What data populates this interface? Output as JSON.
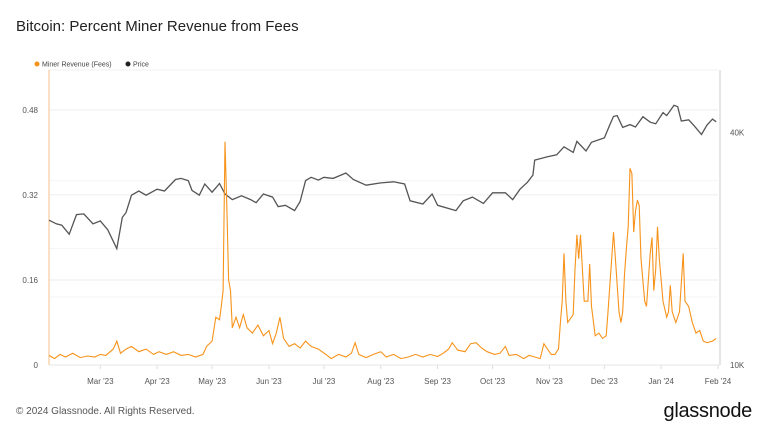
{
  "title": "Bitcoin: Percent Miner Revenue from Fees",
  "footer": "© 2024 Glassnode. All Rights Reserved.",
  "logo": "glassnode",
  "chart_data": {
    "type": "line",
    "title": "Bitcoin: Percent Miner Revenue from Fees",
    "legend": {
      "placement": "top-left",
      "entries": [
        "Miner Revenue (Fees)",
        "Price"
      ]
    },
    "x_range": [
      "2023-02-01",
      "2024-02-01"
    ],
    "x_ticks": [
      {
        "date": "2023-03-01",
        "label": "Mar '23"
      },
      {
        "date": "2023-04-01",
        "label": "Apr '23"
      },
      {
        "date": "2023-05-01",
        "label": "May '23"
      },
      {
        "date": "2023-06-01",
        "label": "Jun '23"
      },
      {
        "date": "2023-07-01",
        "label": "Jul '23"
      },
      {
        "date": "2023-08-01",
        "label": "Aug '23"
      },
      {
        "date": "2023-09-01",
        "label": "Sep '23"
      },
      {
        "date": "2023-10-01",
        "label": "Oct '23"
      },
      {
        "date": "2023-11-01",
        "label": "Nov '23"
      },
      {
        "date": "2023-12-01",
        "label": "Dec '23"
      },
      {
        "date": "2024-01-01",
        "label": "Jan '24"
      },
      {
        "date": "2024-02-01",
        "label": "Feb '24"
      }
    ],
    "y_left": {
      "ylim": [
        0,
        0.555
      ],
      "ticks": [
        {
          "v": 0,
          "label": "0"
        },
        {
          "v": 0.16,
          "label": "0.16"
        },
        {
          "v": 0.32,
          "label": "0.32"
        },
        {
          "v": 0.48,
          "label": "0.48"
        }
      ]
    },
    "y_right": {
      "scale": "log",
      "ylim": [
        10000,
        58000
      ],
      "ticks": [
        {
          "v": 10000,
          "label": "10K"
        },
        {
          "v": 40000,
          "label": "40K"
        }
      ]
    },
    "grid": true,
    "colors": {
      "fees": "#f7931a",
      "price": "#555555",
      "axis_left": "#f9c089"
    },
    "series": [
      {
        "name": "Miner Revenue (Fees)",
        "axis": "left",
        "points": [
          [
            "2023-02-01",
            0.018
          ],
          [
            "2023-02-04",
            0.012
          ],
          [
            "2023-02-07",
            0.02
          ],
          [
            "2023-02-10",
            0.015
          ],
          [
            "2023-02-14",
            0.022
          ],
          [
            "2023-02-18",
            0.014
          ],
          [
            "2023-02-22",
            0.017
          ],
          [
            "2023-02-26",
            0.015
          ],
          [
            "2023-03-01",
            0.02
          ],
          [
            "2023-03-04",
            0.018
          ],
          [
            "2023-03-08",
            0.03
          ],
          [
            "2023-03-10",
            0.045
          ],
          [
            "2023-03-12",
            0.022
          ],
          [
            "2023-03-15",
            0.03
          ],
          [
            "2023-03-18",
            0.035
          ],
          [
            "2023-03-22",
            0.025
          ],
          [
            "2023-03-26",
            0.03
          ],
          [
            "2023-03-30",
            0.02
          ],
          [
            "2023-04-02",
            0.025
          ],
          [
            "2023-04-06",
            0.02
          ],
          [
            "2023-04-10",
            0.025
          ],
          [
            "2023-04-14",
            0.018
          ],
          [
            "2023-04-18",
            0.02
          ],
          [
            "2023-04-22",
            0.015
          ],
          [
            "2023-04-26",
            0.02
          ],
          [
            "2023-04-28",
            0.035
          ],
          [
            "2023-05-01",
            0.045
          ],
          [
            "2023-05-03",
            0.09
          ],
          [
            "2023-05-05",
            0.085
          ],
          [
            "2023-05-06",
            0.11
          ],
          [
            "2023-05-07",
            0.14
          ],
          [
            "2023-05-08",
            0.42
          ],
          [
            "2023-05-09",
            0.3
          ],
          [
            "2023-05-10",
            0.16
          ],
          [
            "2023-05-11",
            0.14
          ],
          [
            "2023-05-12",
            0.07
          ],
          [
            "2023-05-14",
            0.09
          ],
          [
            "2023-05-16",
            0.07
          ],
          [
            "2023-05-18",
            0.095
          ],
          [
            "2023-05-20",
            0.07
          ],
          [
            "2023-05-23",
            0.06
          ],
          [
            "2023-05-26",
            0.075
          ],
          [
            "2023-05-29",
            0.055
          ],
          [
            "2023-06-01",
            0.065
          ],
          [
            "2023-06-03",
            0.04
          ],
          [
            "2023-06-05",
            0.06
          ],
          [
            "2023-06-07",
            0.09
          ],
          [
            "2023-06-09",
            0.05
          ],
          [
            "2023-06-12",
            0.035
          ],
          [
            "2023-06-15",
            0.04
          ],
          [
            "2023-06-18",
            0.032
          ],
          [
            "2023-06-21",
            0.045
          ],
          [
            "2023-06-24",
            0.035
          ],
          [
            "2023-06-28",
            0.03
          ],
          [
            "2023-07-02",
            0.02
          ],
          [
            "2023-07-05",
            0.012
          ],
          [
            "2023-07-09",
            0.02
          ],
          [
            "2023-07-13",
            0.015
          ],
          [
            "2023-07-16",
            0.022
          ],
          [
            "2023-07-18",
            0.042
          ],
          [
            "2023-07-20",
            0.02
          ],
          [
            "2023-07-24",
            0.014
          ],
          [
            "2023-07-28",
            0.02
          ],
          [
            "2023-08-01",
            0.025
          ],
          [
            "2023-08-04",
            0.015
          ],
          [
            "2023-08-08",
            0.02
          ],
          [
            "2023-08-12",
            0.012
          ],
          [
            "2023-08-16",
            0.015
          ],
          [
            "2023-08-20",
            0.02
          ],
          [
            "2023-08-24",
            0.015
          ],
          [
            "2023-08-28",
            0.02
          ],
          [
            "2023-09-01",
            0.016
          ],
          [
            "2023-09-04",
            0.022
          ],
          [
            "2023-09-07",
            0.03
          ],
          [
            "2023-09-09",
            0.042
          ],
          [
            "2023-09-12",
            0.028
          ],
          [
            "2023-09-16",
            0.025
          ],
          [
            "2023-09-19",
            0.04
          ],
          [
            "2023-09-22",
            0.042
          ],
          [
            "2023-09-25",
            0.032
          ],
          [
            "2023-09-28",
            0.025
          ],
          [
            "2023-10-02",
            0.02
          ],
          [
            "2023-10-05",
            0.022
          ],
          [
            "2023-10-08",
            0.035
          ],
          [
            "2023-10-10",
            0.018
          ],
          [
            "2023-10-14",
            0.02
          ],
          [
            "2023-10-18",
            0.012
          ],
          [
            "2023-10-21",
            0.018
          ],
          [
            "2023-10-24",
            0.015
          ],
          [
            "2023-10-27",
            0.012
          ],
          [
            "2023-10-29",
            0.04
          ],
          [
            "2023-10-31",
            0.03
          ],
          [
            "2023-11-02",
            0.02
          ],
          [
            "2023-11-04",
            0.02
          ],
          [
            "2023-11-06",
            0.03
          ],
          [
            "2023-11-07",
            0.08
          ],
          [
            "2023-11-08",
            0.12
          ],
          [
            "2023-11-09",
            0.21
          ],
          [
            "2023-11-10",
            0.12
          ],
          [
            "2023-11-11",
            0.08
          ],
          [
            "2023-11-13",
            0.09
          ],
          [
            "2023-11-14",
            0.095
          ],
          [
            "2023-11-15",
            0.18
          ],
          [
            "2023-11-16",
            0.245
          ],
          [
            "2023-11-17",
            0.2
          ],
          [
            "2023-11-18",
            0.245
          ],
          [
            "2023-11-19",
            0.18
          ],
          [
            "2023-11-20",
            0.12
          ],
          [
            "2023-11-22",
            0.12
          ],
          [
            "2023-11-23",
            0.19
          ],
          [
            "2023-11-24",
            0.11
          ],
          [
            "2023-11-26",
            0.055
          ],
          [
            "2023-11-28",
            0.06
          ],
          [
            "2023-11-30",
            0.05
          ],
          [
            "2023-12-02",
            0.055
          ],
          [
            "2023-12-03",
            0.1
          ],
          [
            "2023-12-05",
            0.2
          ],
          [
            "2023-12-06",
            0.25
          ],
          [
            "2023-12-07",
            0.2
          ],
          [
            "2023-12-09",
            0.1
          ],
          [
            "2023-12-10",
            0.08
          ],
          [
            "2023-12-11",
            0.1
          ],
          [
            "2023-12-12",
            0.17
          ],
          [
            "2023-12-13",
            0.22
          ],
          [
            "2023-12-14",
            0.26
          ],
          [
            "2023-12-15",
            0.37
          ],
          [
            "2023-12-16",
            0.36
          ],
          [
            "2023-12-17",
            0.25
          ],
          [
            "2023-12-18",
            0.29
          ],
          [
            "2023-12-19",
            0.31
          ],
          [
            "2023-12-20",
            0.3
          ],
          [
            "2023-12-21",
            0.2
          ],
          [
            "2023-12-23",
            0.12
          ],
          [
            "2023-12-24",
            0.11
          ],
          [
            "2023-12-26",
            0.21
          ],
          [
            "2023-12-27",
            0.24
          ],
          [
            "2023-12-28",
            0.14
          ],
          [
            "2023-12-29",
            0.18
          ],
          [
            "2023-12-30",
            0.26
          ],
          [
            "2023-12-31",
            0.2
          ],
          [
            "2024-01-02",
            0.12
          ],
          [
            "2024-01-04",
            0.09
          ],
          [
            "2024-01-05",
            0.1
          ],
          [
            "2024-01-06",
            0.15
          ],
          [
            "2024-01-07",
            0.1
          ],
          [
            "2024-01-09",
            0.08
          ],
          [
            "2024-01-11",
            0.1
          ],
          [
            "2024-01-13",
            0.21
          ],
          [
            "2024-01-14",
            0.12
          ],
          [
            "2024-01-16",
            0.11
          ],
          [
            "2024-01-18",
            0.08
          ],
          [
            "2024-01-20",
            0.06
          ],
          [
            "2024-01-22",
            0.065
          ],
          [
            "2024-01-24",
            0.045
          ],
          [
            "2024-01-26",
            0.042
          ],
          [
            "2024-01-29",
            0.045
          ],
          [
            "2024-01-31",
            0.05
          ]
        ]
      },
      {
        "name": "Price",
        "axis": "right",
        "points": [
          [
            "2023-02-01",
            23700
          ],
          [
            "2023-02-05",
            23200
          ],
          [
            "2023-02-08",
            23000
          ],
          [
            "2023-02-12",
            21800
          ],
          [
            "2023-02-16",
            24500
          ],
          [
            "2023-02-20",
            24600
          ],
          [
            "2023-02-25",
            23200
          ],
          [
            "2023-03-01",
            23600
          ],
          [
            "2023-03-05",
            22400
          ],
          [
            "2023-03-10",
            20000
          ],
          [
            "2023-03-13",
            24100
          ],
          [
            "2023-03-15",
            24800
          ],
          [
            "2023-03-18",
            27500
          ],
          [
            "2023-03-22",
            28200
          ],
          [
            "2023-03-26",
            27500
          ],
          [
            "2023-04-01",
            28500
          ],
          [
            "2023-04-05",
            28200
          ],
          [
            "2023-04-11",
            30200
          ],
          [
            "2023-04-14",
            30400
          ],
          [
            "2023-04-18",
            30000
          ],
          [
            "2023-04-20",
            28300
          ],
          [
            "2023-04-24",
            27500
          ],
          [
            "2023-04-27",
            29400
          ],
          [
            "2023-05-01",
            28000
          ],
          [
            "2023-05-05",
            29500
          ],
          [
            "2023-05-08",
            27700
          ],
          [
            "2023-05-12",
            26800
          ],
          [
            "2023-05-17",
            27400
          ],
          [
            "2023-05-22",
            26800
          ],
          [
            "2023-05-25",
            26300
          ],
          [
            "2023-05-29",
            27700
          ],
          [
            "2023-06-03",
            27200
          ],
          [
            "2023-06-06",
            25700
          ],
          [
            "2023-06-10",
            25900
          ],
          [
            "2023-06-15",
            25100
          ],
          [
            "2023-06-18",
            26500
          ],
          [
            "2023-06-21",
            30000
          ],
          [
            "2023-06-24",
            30600
          ],
          [
            "2023-06-28",
            30100
          ],
          [
            "2023-07-01",
            30600
          ],
          [
            "2023-07-06",
            30400
          ],
          [
            "2023-07-13",
            31400
          ],
          [
            "2023-07-17",
            30200
          ],
          [
            "2023-07-24",
            29200
          ],
          [
            "2023-08-01",
            29600
          ],
          [
            "2023-08-08",
            29800
          ],
          [
            "2023-08-14",
            29400
          ],
          [
            "2023-08-17",
            26600
          ],
          [
            "2023-08-24",
            26100
          ],
          [
            "2023-08-29",
            27700
          ],
          [
            "2023-09-01",
            25900
          ],
          [
            "2023-09-11",
            25100
          ],
          [
            "2023-09-15",
            26600
          ],
          [
            "2023-09-20",
            27200
          ],
          [
            "2023-09-26",
            26200
          ],
          [
            "2023-10-01",
            27900
          ],
          [
            "2023-10-08",
            27900
          ],
          [
            "2023-10-12",
            26800
          ],
          [
            "2023-10-16",
            28500
          ],
          [
            "2023-10-20",
            29700
          ],
          [
            "2023-10-23",
            31000
          ],
          [
            "2023-10-24",
            33900
          ],
          [
            "2023-10-31",
            34600
          ],
          [
            "2023-11-05",
            35000
          ],
          [
            "2023-11-09",
            36700
          ],
          [
            "2023-11-14",
            35500
          ],
          [
            "2023-11-16",
            37900
          ],
          [
            "2023-11-21",
            35800
          ],
          [
            "2023-11-24",
            37700
          ],
          [
            "2023-12-01",
            38700
          ],
          [
            "2023-12-04",
            41900
          ],
          [
            "2023-12-06",
            44000
          ],
          [
            "2023-12-08",
            44200
          ],
          [
            "2023-12-11",
            41200
          ],
          [
            "2023-12-15",
            41900
          ],
          [
            "2023-12-18",
            41300
          ],
          [
            "2023-12-22",
            43900
          ],
          [
            "2023-12-26",
            42500
          ],
          [
            "2023-12-29",
            42100
          ],
          [
            "2024-01-02",
            45000
          ],
          [
            "2024-01-04",
            44200
          ],
          [
            "2024-01-08",
            47000
          ],
          [
            "2024-01-10",
            46600
          ],
          [
            "2024-01-12",
            42800
          ],
          [
            "2024-01-16",
            43100
          ],
          [
            "2024-01-19",
            41600
          ],
          [
            "2024-01-23",
            39500
          ],
          [
            "2024-01-26",
            41800
          ],
          [
            "2024-01-29",
            43300
          ],
          [
            "2024-01-31",
            42600
          ]
        ]
      }
    ]
  }
}
